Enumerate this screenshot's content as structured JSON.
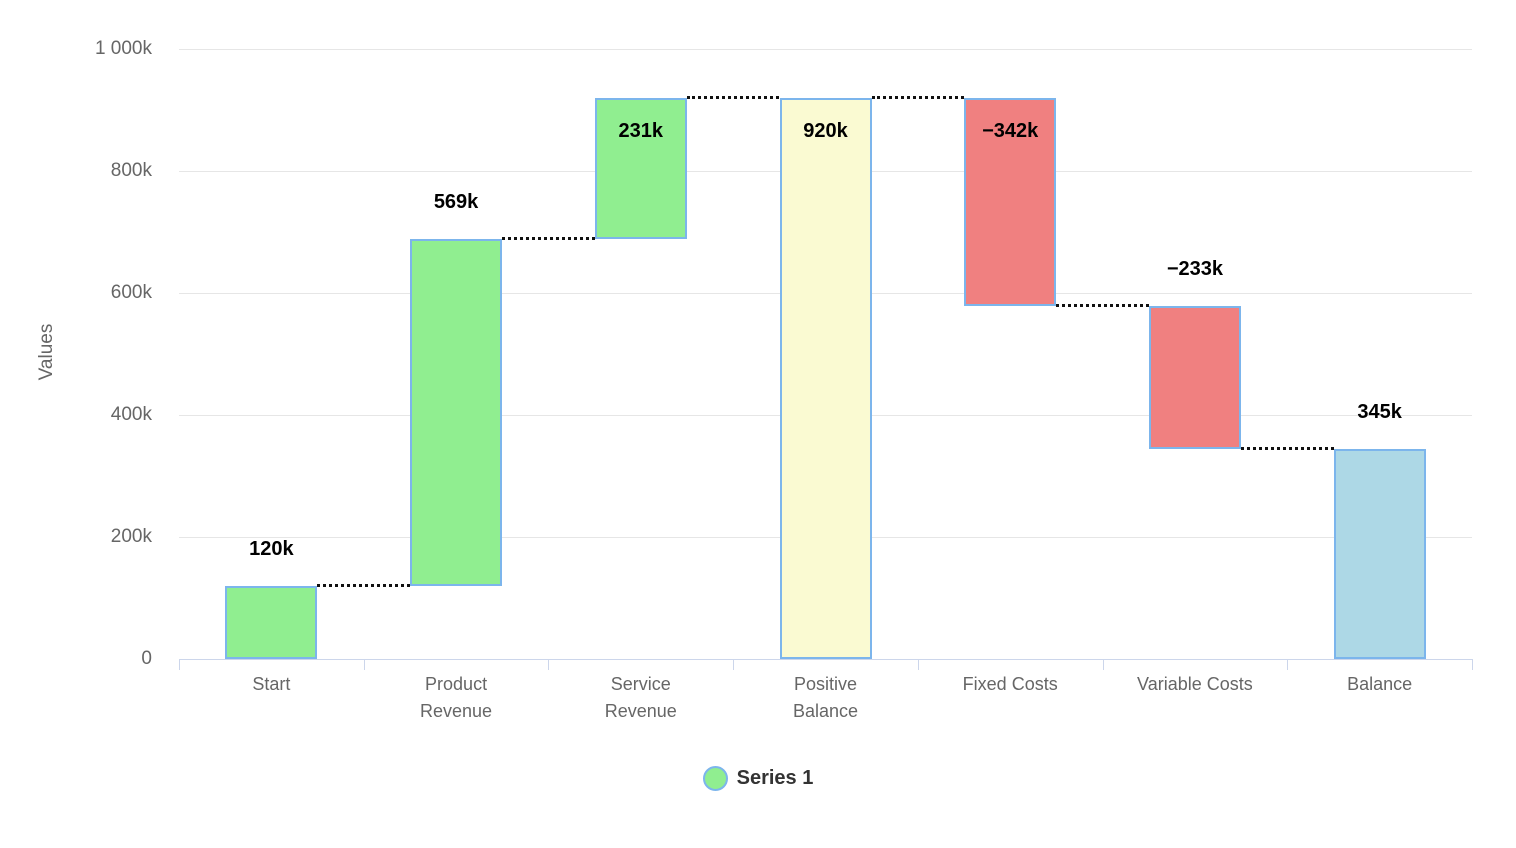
{
  "chart_data": {
    "type": "waterfall",
    "title": "",
    "xlabel": "",
    "ylabel": "Values",
    "ylim": [
      0,
      1000
    ],
    "value_unit": "k",
    "grid": "horizontal-only",
    "legend_position": "bottom-center",
    "background": "#FFFFFF",
    "yticks": [
      {
        "value": 0,
        "label": "0"
      },
      {
        "value": 200,
        "label": "200k"
      },
      {
        "value": 400,
        "label": "400k"
      },
      {
        "value": 600,
        "label": "600k"
      },
      {
        "value": 800,
        "label": "800k"
      },
      {
        "value": 1000,
        "label": "1 000k"
      }
    ],
    "points": [
      {
        "name": "Start",
        "value": 120,
        "start": 0,
        "end": 120,
        "label": "120k",
        "kind": "positive",
        "category_lines": [
          "Start"
        ]
      },
      {
        "name": "Product Revenue",
        "value": 569,
        "start": 120,
        "end": 689,
        "label": "569k",
        "kind": "positive",
        "category_lines": [
          "Product",
          "Revenue"
        ]
      },
      {
        "name": "Service Revenue",
        "value": 231,
        "start": 689,
        "end": 920,
        "label": "231k",
        "kind": "positive",
        "category_lines": [
          "Service",
          "Revenue"
        ]
      },
      {
        "name": "Positive Balance",
        "value": 920,
        "start": 0,
        "end": 920,
        "label": "920k",
        "kind": "intermediate_sum",
        "category_lines": [
          "Positive",
          "Balance"
        ]
      },
      {
        "name": "Fixed Costs",
        "value": -342,
        "start": 920,
        "end": 578,
        "label": "−342k",
        "kind": "negative",
        "category_lines": [
          "Fixed Costs"
        ]
      },
      {
        "name": "Variable Costs",
        "value": -233,
        "start": 578,
        "end": 345,
        "label": "−233k",
        "kind": "negative",
        "category_lines": [
          "Variable Costs"
        ]
      },
      {
        "name": "Balance",
        "value": 345,
        "start": 0,
        "end": 345,
        "label": "345k",
        "kind": "sum",
        "category_lines": [
          "Balance"
        ]
      }
    ],
    "legend": {
      "label": "Series 1",
      "marker_fill": "#90EE90",
      "marker_border": "#7CB5EC"
    },
    "colors": {
      "positive": "#90EE90",
      "negative": "#F08080",
      "intermediate_sum": "#FAFAD2",
      "sum": "#ADD8E6",
      "bar_border": "#7CB5EC",
      "gridline": "#E6E6E6",
      "axis_line": "#CCD6EB",
      "connector": "#111111",
      "data_label": "#000000",
      "axis_text": "#666666",
      "legend_text": "#333333"
    }
  }
}
